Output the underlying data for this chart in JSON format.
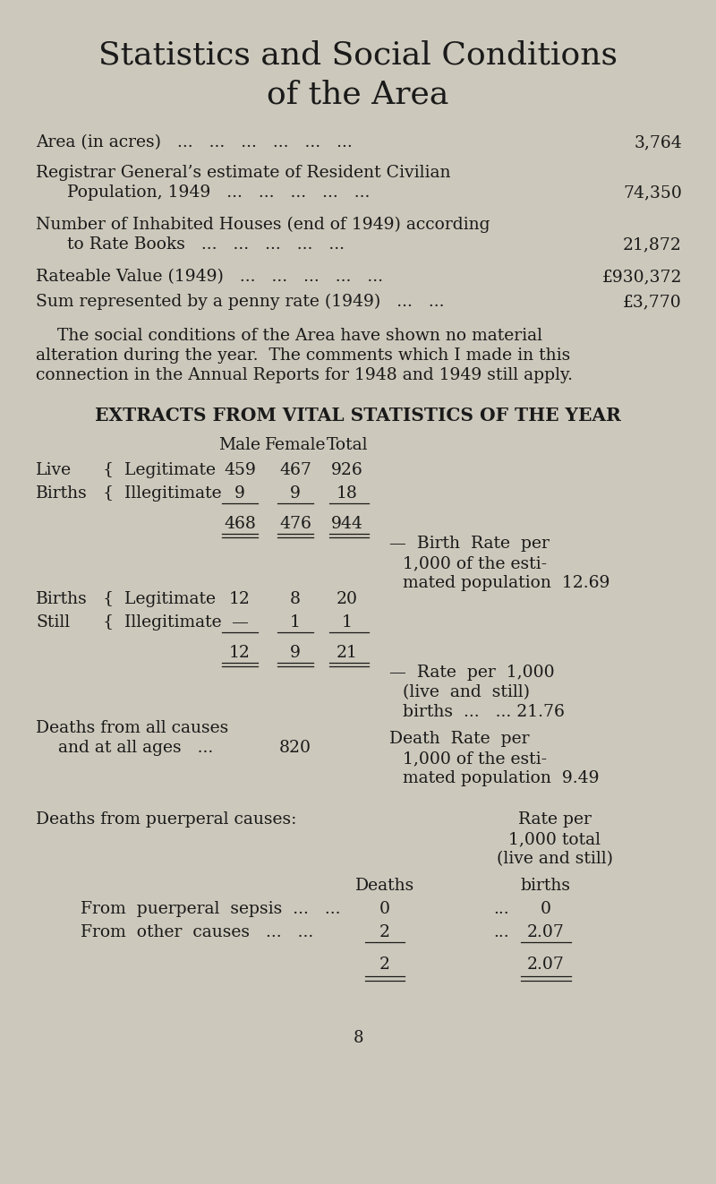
{
  "bg_color": "#ccc8bb",
  "text_color": "#1a1a1a",
  "title_line1": "Statistics and Social Conditions",
  "title_line2": "of the Area",
  "page_number": "8"
}
